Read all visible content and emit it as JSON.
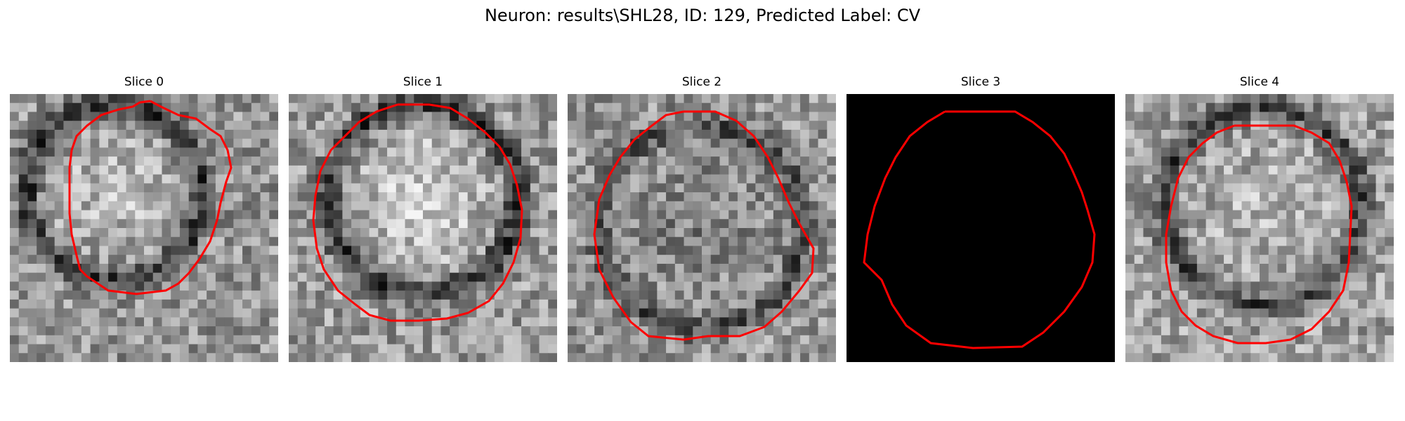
{
  "figure": {
    "title": "Neuron: results\\SHL28, ID: 129, Predicted Label: CV"
  },
  "contour_color": "#ff0000",
  "panels": [
    {
      "title": "Slice 0",
      "image": "grayscale EM patch with dark ring around a lighter rounded interior"
    },
    {
      "title": "Slice 1",
      "image": "grayscale EM patch with bright lower interior and dark membrane ring"
    },
    {
      "title": "Slice 2",
      "image": "grayscale noisy EM patch with darker center"
    },
    {
      "title": "Slice 3",
      "image": "all-black patch"
    },
    {
      "title": "Slice 4",
      "image": "grayscale EM patch with dark ring along top-right and dark spot left of center"
    }
  ]
}
